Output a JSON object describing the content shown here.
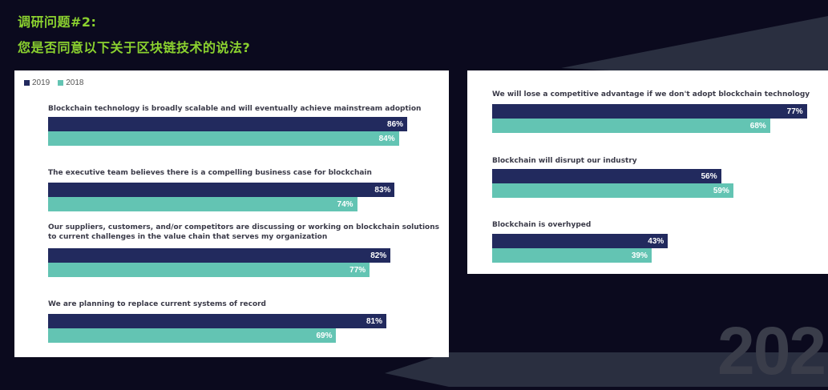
{
  "header": {
    "line1": "调研问题#2:",
    "line2": "您是否同意以下关于区块链技术的说法?"
  },
  "colors": {
    "series_2019": "#222a5e",
    "series_2018": "#63c4b3",
    "title_green": "#8bd12f",
    "background": "#0b0a1e"
  },
  "watermark": {
    "year": "202"
  },
  "chart_data": [
    {
      "type": "bar",
      "orientation": "horizontal",
      "legend": [
        "2019",
        "2018"
      ],
      "legend_position": "top-left",
      "series": [
        {
          "name": "2019",
          "values": [
            86,
            83,
            82,
            81
          ],
          "labels": [
            "86%",
            "83%",
            "82%",
            "81%"
          ]
        },
        {
          "name": "2018",
          "values": [
            84,
            74,
            77,
            69
          ],
          "labels": [
            "84%",
            "74%",
            "77%",
            "69%"
          ]
        }
      ],
      "categories": [
        "Blockchain technology is broadly scalable and will eventually achieve mainstream adoption",
        "The executive team believes there is a compelling business case for blockchain",
        "Our suppliers, customers, and/or competitors are discussing or working on blockchain solutions\nto current challenges in the value chain that serves my organization",
        "We are planning to replace current systems of record"
      ],
      "xlim": [
        0,
        100
      ]
    },
    {
      "type": "bar",
      "orientation": "horizontal",
      "series": [
        {
          "name": "2019",
          "values": [
            77,
            56,
            43
          ],
          "labels": [
            "77%",
            "56%",
            "43%"
          ]
        },
        {
          "name": "2018",
          "values": [
            68,
            59,
            39
          ],
          "labels": [
            "68%",
            "59%",
            "39%"
          ]
        }
      ],
      "categories": [
        "We will lose a competitive advantage if we don't adopt blockchain technology",
        "Blockchain will disrupt our industry",
        "Blockchain is overhyped"
      ],
      "xlim": [
        0,
        100
      ]
    }
  ]
}
